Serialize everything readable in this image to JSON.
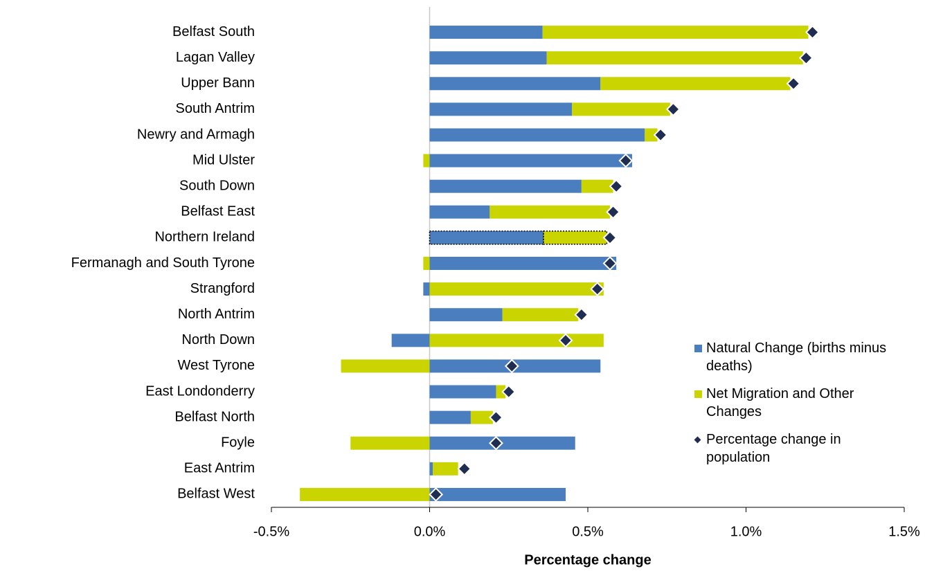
{
  "chart_data": {
    "type": "bar",
    "orientation": "horizontal",
    "stacked": true,
    "xlabel": "Percentage change",
    "categories": [
      "Belfast South",
      "Lagan Valley",
      "Upper Bann",
      "South Antrim",
      "Newry and Armagh",
      "Mid Ulster",
      "South Down",
      "Belfast East",
      "Northern Ireland",
      "Fermanagh and South Tyrone",
      "Strangford",
      "North Antrim",
      "North Down",
      "West Tyrone",
      "East Londonderry",
      "Belfast North",
      "Foyle",
      "East Antrim",
      "Belfast West"
    ],
    "highlighted_category": 8,
    "series": [
      {
        "name": "Natural Change (births minus deaths)",
        "color": "#4a7ebf",
        "type": "bar",
        "values": [
          0.357,
          0.37,
          0.54,
          0.45,
          0.68,
          0.64,
          0.48,
          0.19,
          0.36,
          0.59,
          -0.02,
          0.23,
          -0.12,
          0.54,
          0.21,
          0.13,
          0.46,
          0.01,
          0.43
        ]
      },
      {
        "name": "Net Migration and Other Changes",
        "color": "#c9d400",
        "type": "bar",
        "values": [
          0.84,
          0.81,
          0.6,
          0.31,
          0.04,
          -0.02,
          0.1,
          0.38,
          0.2,
          -0.02,
          0.55,
          0.24,
          0.55,
          -0.28,
          0.03,
          0.07,
          -0.25,
          0.08,
          -0.41
        ]
      },
      {
        "name": "Percentage change in population",
        "color": "#1f2d50",
        "type": "scatter",
        "marker": "diamond",
        "values": [
          1.21,
          1.19,
          1.15,
          0.77,
          0.73,
          0.62,
          0.59,
          0.58,
          0.57,
          0.57,
          0.53,
          0.48,
          0.43,
          0.26,
          0.25,
          0.21,
          0.21,
          0.11,
          0.02
        ]
      }
    ],
    "xlim": [
      -0.5,
      1.5
    ],
    "xticks": [
      {
        "value": -0.5,
        "label": "-0.5%"
      },
      {
        "value": 0,
        "label": "0.0%"
      },
      {
        "value": 0.5,
        "label": "0.5%"
      },
      {
        "value": 1,
        "label": "1.0%"
      },
      {
        "value": 1.5,
        "label": "1.5%"
      }
    ],
    "grid": false,
    "legend": "lower right"
  }
}
